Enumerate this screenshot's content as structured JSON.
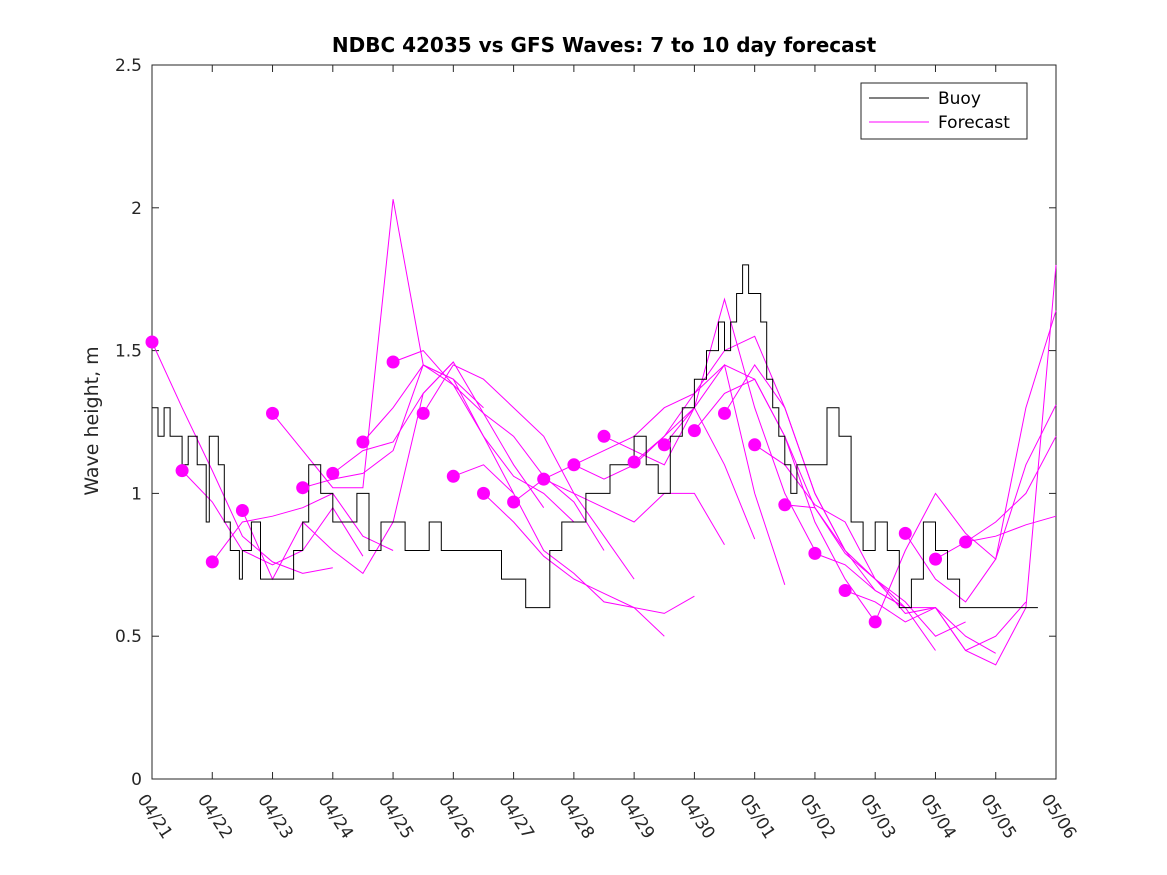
{
  "chart_data": {
    "type": "line",
    "title": "NDBC 42035 vs GFS Waves: 7 to 10 day forecast",
    "xlabel": "",
    "ylabel": "Wave height, m",
    "x_tick_labels": [
      "04/21",
      "04/22",
      "04/23",
      "04/24",
      "04/25",
      "04/26",
      "04/27",
      "04/28",
      "04/29",
      "04/30",
      "05/01",
      "05/02",
      "05/03",
      "05/04",
      "05/05",
      "05/06"
    ],
    "xlim": [
      0,
      15
    ],
    "ylim": [
      0,
      2.5
    ],
    "y_ticks": [
      0,
      0.5,
      1,
      1.5,
      2,
      2.5
    ],
    "y_tick_labels": [
      "0",
      "0.5",
      "1",
      "1.5",
      "2",
      "2.5"
    ],
    "grid": false,
    "legend_position": "top-right",
    "colors": {
      "buoy": "#000000",
      "forecast": "#ff00ff"
    },
    "series": [
      {
        "name": "Buoy",
        "style": "step",
        "x": [
          0,
          0.1,
          0.2,
          0.3,
          0.5,
          0.6,
          0.75,
          0.9,
          0.95,
          1.1,
          1.2,
          1.3,
          1.45,
          1.5,
          1.65,
          1.8,
          2.1,
          2.2,
          2.35,
          2.5,
          2.6,
          2.8,
          3.0,
          3.2,
          3.4,
          3.6,
          3.8,
          4.0,
          4.2,
          4.4,
          4.6,
          4.8,
          5.0,
          5.2,
          5.4,
          5.6,
          5.8,
          6.0,
          6.2,
          6.4,
          6.6,
          6.8,
          7.0,
          7.2,
          7.4,
          7.6,
          7.8,
          8.0,
          8.2,
          8.4,
          8.6,
          8.8,
          9.0,
          9.2,
          9.4,
          9.5,
          9.6,
          9.7,
          9.8,
          9.9,
          10.0,
          10.1,
          10.2,
          10.3,
          10.4,
          10.5,
          10.6,
          10.7,
          10.8,
          11.0,
          11.2,
          11.4,
          11.6,
          11.8,
          12.0,
          12.2,
          12.4,
          12.6,
          12.8,
          13.0,
          13.2,
          13.4,
          13.6,
          13.8,
          14.0,
          14.2,
          14.4
        ],
        "y": [
          1.3,
          1.2,
          1.3,
          1.2,
          1.1,
          1.2,
          1.1,
          0.9,
          1.2,
          1.1,
          0.9,
          0.8,
          0.7,
          0.8,
          0.9,
          0.7,
          0.7,
          0.7,
          0.8,
          0.9,
          1.1,
          1.0,
          0.9,
          0.9,
          1.0,
          0.8,
          0.9,
          0.9,
          0.8,
          0.8,
          0.9,
          0.8,
          0.8,
          0.8,
          0.8,
          0.8,
          0.7,
          0.7,
          0.6,
          0.6,
          0.8,
          0.9,
          0.9,
          1.0,
          1.0,
          1.1,
          1.1,
          1.2,
          1.1,
          1.0,
          1.2,
          1.3,
          1.4,
          1.5,
          1.6,
          1.5,
          1.6,
          1.7,
          1.8,
          1.7,
          1.7,
          1.6,
          1.4,
          1.3,
          1.2,
          1.1,
          1.0,
          1.1,
          1.1,
          1.1,
          1.3,
          1.2,
          0.9,
          0.8,
          0.9,
          0.8,
          0.6,
          0.7,
          0.9,
          0.8,
          0.7,
          0.6,
          0.6,
          0.6,
          0.6,
          0.6,
          0.6
        ]
      },
      {
        "name": "Forecast",
        "style": "lines",
        "runs": [
          {
            "x": [
              0,
              0.5,
              1,
              1.5,
              2,
              2.5,
              3
            ],
            "y": [
              1.53,
              1.3,
              1.08,
              0.85,
              0.76,
              0.72,
              0.74
            ]
          },
          {
            "x": [
              0.5,
              1,
              1.5,
              2,
              2.5,
              3,
              3.5
            ],
            "y": [
              1.08,
              0.97,
              0.8,
              0.75,
              0.8,
              0.95,
              0.78
            ]
          },
          {
            "x": [
              1,
              1.5,
              2,
              2.5,
              3,
              3.5,
              4
            ],
            "y": [
              0.76,
              0.9,
              0.92,
              0.95,
              1.0,
              0.85,
              0.8
            ]
          },
          {
            "x": [
              1.5,
              2,
              2.5,
              3,
              3.5,
              4,
              4.5,
              5
            ],
            "y": [
              0.94,
              0.7,
              0.9,
              0.8,
              0.72,
              0.9,
              1.35,
              1.46
            ]
          },
          {
            "x": [
              2,
              2.5,
              3,
              3.5,
              4,
              4.5,
              5,
              5.5
            ],
            "y": [
              1.28,
              1.15,
              1.02,
              1.02,
              2.03,
              1.45,
              1.4,
              1.3
            ]
          },
          {
            "x": [
              2.5,
              3,
              3.5,
              4,
              4.5,
              5,
              5.5,
              6
            ],
            "y": [
              1.02,
              1.05,
              1.07,
              1.15,
              1.45,
              1.38,
              1.2,
              1.0
            ]
          },
          {
            "x": [
              3,
              3.5,
              4,
              4.5,
              5,
              5.5,
              6,
              6.5
            ],
            "y": [
              1.07,
              1.15,
              1.18,
              1.35,
              1.46,
              1.28,
              1.1,
              0.95
            ]
          },
          {
            "x": [
              3.5,
              4,
              4.5,
              5,
              5.5,
              6,
              6.5,
              7
            ],
            "y": [
              1.18,
              1.3,
              1.45,
              1.4,
              1.2,
              1.06,
              1.0,
              0.9
            ]
          },
          {
            "x": [
              4,
              4.5,
              5,
              5.5,
              6,
              6.5,
              7,
              7.5
            ],
            "y": [
              1.46,
              1.5,
              1.38,
              1.28,
              1.2,
              1.06,
              0.97,
              0.8
            ]
          },
          {
            "x": [
              4.5,
              5,
              5.5,
              6,
              6.5,
              7,
              7.5,
              8
            ],
            "y": [
              1.28,
              1.45,
              1.4,
              1.3,
              1.2,
              1.0,
              0.85,
              0.7
            ]
          },
          {
            "x": [
              5,
              5.5,
              6,
              6.5,
              7,
              7.5,
              8,
              8.5
            ],
            "y": [
              1.06,
              1.1,
              1.0,
              0.8,
              0.72,
              0.62,
              0.6,
              0.5
            ]
          },
          {
            "x": [
              5.5,
              6,
              6.5,
              7,
              7.5,
              8,
              8.5,
              9
            ],
            "y": [
              1.0,
              0.9,
              0.78,
              0.7,
              0.65,
              0.6,
              0.58,
              0.64
            ]
          },
          {
            "x": [
              6,
              6.5,
              7,
              7.5,
              8,
              8.5,
              9,
              9.5
            ],
            "y": [
              0.97,
              1.05,
              1.0,
              0.95,
              0.9,
              1.0,
              1.0,
              0.82
            ]
          },
          {
            "x": [
              6.5,
              7,
              7.5,
              8,
              8.5,
              9,
              9.5,
              10
            ],
            "y": [
              1.05,
              1.1,
              1.05,
              1.1,
              1.2,
              1.3,
              1.1,
              0.84
            ]
          },
          {
            "x": [
              7,
              7.5,
              8,
              8.5,
              9,
              9.5,
              10,
              10.5
            ],
            "y": [
              1.1,
              1.15,
              1.2,
              1.3,
              1.35,
              1.45,
              1.0,
              0.68
            ]
          },
          {
            "x": [
              7.5,
              8,
              8.5,
              9,
              9.5,
              10,
              10.5,
              11
            ],
            "y": [
              1.2,
              1.15,
              1.1,
              1.3,
              1.68,
              1.3,
              1.0,
              0.8
            ]
          },
          {
            "x": [
              8,
              8.5,
              9,
              9.5,
              10,
              10.5,
              11,
              11.5
            ],
            "y": [
              1.11,
              1.2,
              1.35,
              1.5,
              1.55,
              1.3,
              1.0,
              0.8
            ]
          },
          {
            "x": [
              8.5,
              9,
              9.5,
              10,
              10.5,
              11,
              11.5,
              12
            ],
            "y": [
              1.17,
              1.3,
              1.45,
              1.4,
              1.2,
              0.9,
              0.7,
              0.55
            ]
          },
          {
            "x": [
              9,
              9.5,
              10,
              10.5,
              11,
              11.5,
              12,
              12.5
            ],
            "y": [
              1.22,
              1.35,
              1.4,
              1.2,
              0.95,
              0.8,
              0.7,
              0.6
            ]
          },
          {
            "x": [
              9.5,
              10,
              10.5,
              11,
              11.5,
              12,
              12.5,
              13
            ],
            "y": [
              1.28,
              1.45,
              1.3,
              1.0,
              0.8,
              0.66,
              0.6,
              0.45
            ]
          },
          {
            "x": [
              10,
              10.5,
              11,
              11.5,
              12,
              12.5,
              13,
              13.5
            ],
            "y": [
              1.17,
              1.1,
              0.96,
              0.9,
              0.7,
              0.62,
              0.5,
              0.55
            ]
          },
          {
            "x": [
              10.5,
              11,
              11.5,
              12,
              12.5,
              13,
              13.5,
              14
            ],
            "y": [
              0.96,
              0.95,
              0.79,
              0.7,
              0.58,
              0.6,
              0.5,
              0.44
            ]
          },
          {
            "x": [
              11,
              11.5,
              12,
              12.5,
              13,
              13.5,
              14,
              14.5
            ],
            "y": [
              0.79,
              0.75,
              0.66,
              0.6,
              0.6,
              0.45,
              0.5,
              0.62
            ]
          },
          {
            "x": [
              11.5,
              12,
              12.5,
              13,
              13.5,
              14,
              14.5,
              15
            ],
            "y": [
              0.66,
              0.62,
              0.55,
              0.6,
              0.45,
              0.4,
              0.6,
              1.8
            ]
          },
          {
            "x": [
              12,
              12.5,
              13,
              13.5,
              14,
              14.5,
              15
            ],
            "y": [
              0.55,
              0.8,
              1.0,
              0.86,
              0.77,
              1.3,
              1.64
            ]
          },
          {
            "x": [
              12.5,
              13,
              13.5,
              14,
              14.5,
              15
            ],
            "y": [
              0.86,
              0.7,
              0.62,
              0.77,
              1.1,
              1.31
            ]
          },
          {
            "x": [
              13,
              13.5,
              14,
              14.5,
              15
            ],
            "y": [
              0.77,
              0.83,
              0.9,
              1.0,
              1.2
            ]
          },
          {
            "x": [
              13.5,
              14,
              14.5,
              15
            ],
            "y": [
              0.83,
              0.85,
              0.89,
              0.92
            ]
          }
        ],
        "marker_points": {
          "x": [
            0,
            0.5,
            1,
            1.5,
            2,
            2.5,
            3,
            3.5,
            4,
            4.5,
            5,
            5.5,
            6,
            6.5,
            7,
            7.5,
            8,
            8.5,
            9,
            9.5,
            10,
            10.5,
            11,
            11.5,
            12,
            12.5,
            13,
            13.5
          ],
          "y": [
            1.53,
            1.08,
            0.76,
            0.94,
            1.28,
            1.02,
            1.07,
            1.18,
            1.46,
            1.28,
            1.06,
            1.0,
            0.97,
            1.05,
            1.1,
            1.2,
            1.11,
            1.17,
            1.22,
            1.28,
            1.17,
            0.96,
            0.79,
            0.66,
            0.55,
            0.86,
            0.77,
            0.83
          ]
        }
      }
    ]
  }
}
